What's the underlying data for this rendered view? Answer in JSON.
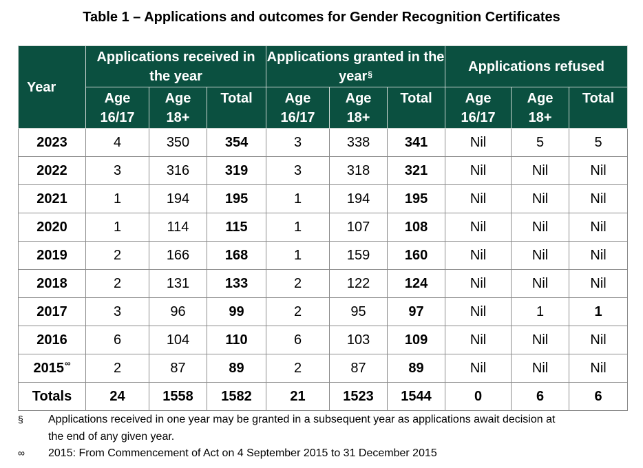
{
  "title": "Table 1 – Applications and outcomes for Gender Recognition Certificates",
  "header": {
    "year": "Year",
    "group_received": "Applications received in the year",
    "group_granted": "Applications granted in the year",
    "group_granted_mark": "§",
    "group_refused": "Applications refused",
    "sub": {
      "age_young_1": "Age",
      "age_young_2": "16/17",
      "age_adult_1": "Age",
      "age_adult_2": "18+",
      "total": "Total"
    }
  },
  "rows": [
    {
      "year": "2023",
      "mark": "",
      "c": [
        "4",
        "350",
        "354",
        "3",
        "338",
        "341",
        "Nil",
        "5",
        "5"
      ]
    },
    {
      "year": "2022",
      "mark": "",
      "c": [
        "3",
        "316",
        "319",
        "3",
        "318",
        "321",
        "Nil",
        "Nil",
        "Nil"
      ]
    },
    {
      "year": "2021",
      "mark": "",
      "c": [
        "1",
        "194",
        "195",
        "1",
        "194",
        "195",
        "Nil",
        "Nil",
        "Nil"
      ]
    },
    {
      "year": "2020",
      "mark": "",
      "c": [
        "1",
        "114",
        "115",
        "1",
        "107",
        "108",
        "Nil",
        "Nil",
        "Nil"
      ]
    },
    {
      "year": "2019",
      "mark": "",
      "c": [
        "2",
        "166",
        "168",
        "1",
        "159",
        "160",
        "Nil",
        "Nil",
        "Nil"
      ]
    },
    {
      "year": "2018",
      "mark": "",
      "c": [
        "2",
        "131",
        "133",
        "2",
        "122",
        "124",
        "Nil",
        "Nil",
        "Nil"
      ]
    },
    {
      "year": "2017",
      "mark": "",
      "c": [
        "3",
        "96",
        "99",
        "2",
        "95",
        "97",
        "Nil",
        "1",
        "1"
      ]
    },
    {
      "year": "2016",
      "mark": "",
      "c": [
        "6",
        "104",
        "110",
        "6",
        "103",
        "109",
        "Nil",
        "Nil",
        "Nil"
      ]
    },
    {
      "year": "2015",
      "mark": "∞",
      "c": [
        "2",
        "87",
        "89",
        "2",
        "87",
        "89",
        "Nil",
        "Nil",
        "Nil"
      ]
    }
  ],
  "totals": {
    "label": "Totals",
    "c": [
      "24",
      "1558",
      "1582",
      "21",
      "1523",
      "1544",
      "0",
      "6",
      "6"
    ]
  },
  "footnotes": [
    {
      "symbol": "§",
      "line1": "Applications received in one year may be granted in a subsequent year as applications await decision at",
      "line2": "the end of any given year."
    },
    {
      "symbol": "∞",
      "line1": "2015: From Commencement of Act on 4 September 2015 to 31 December 2015"
    }
  ],
  "colors": {
    "header_bg": "#0b5040",
    "header_text": "#ffffff",
    "grid": "#8a8a8a"
  }
}
